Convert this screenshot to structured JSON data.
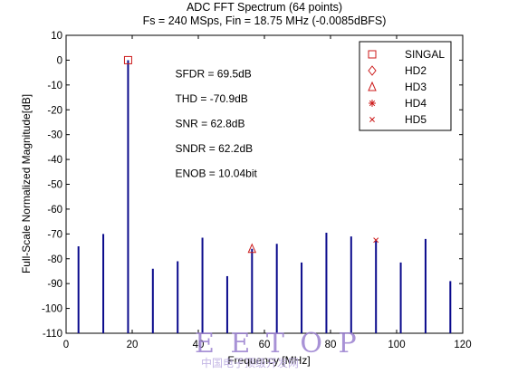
{
  "chart_data": {
    "type": "bar",
    "title_lines": [
      "ADC FFT Spectrum (64 points)",
      "Fs = 240 MSps, Fin = 18.75 MHz (-0.0085dBFS)"
    ],
    "xlabel": "Frequency [MHz]",
    "ylabel": "Full-Scale Normalized Magnitude[dB]",
    "xlim": [
      0,
      120
    ],
    "ylim": [
      -110,
      10
    ],
    "xticks": [
      0,
      20,
      40,
      60,
      80,
      100,
      120
    ],
    "yticks": [
      10,
      0,
      -10,
      -20,
      -30,
      -40,
      -50,
      -60,
      -70,
      -80,
      -90,
      -100,
      -110
    ],
    "grid": false,
    "baseline": -110,
    "bars": [
      {
        "x": 3.75,
        "y": -75
      },
      {
        "x": 11.25,
        "y": -70
      },
      {
        "x": 18.75,
        "y": -0.0085
      },
      {
        "x": 26.25,
        "y": -84
      },
      {
        "x": 33.75,
        "y": -81
      },
      {
        "x": 41.25,
        "y": -71.5
      },
      {
        "x": 48.75,
        "y": -87
      },
      {
        "x": 56.25,
        "y": -76
      },
      {
        "x": 63.75,
        "y": -74
      },
      {
        "x": 71.25,
        "y": -81.5
      },
      {
        "x": 78.75,
        "y": -69.5
      },
      {
        "x": 86.25,
        "y": -71
      },
      {
        "x": 93.75,
        "y": -72.5
      },
      {
        "x": 101.25,
        "y": -81.5
      },
      {
        "x": 108.75,
        "y": -72
      },
      {
        "x": 116.25,
        "y": -89
      }
    ],
    "markers": [
      {
        "name": "SINGAL",
        "symbol": "square",
        "x": 18.75,
        "y": 0
      },
      {
        "name": "HD3",
        "symbol": "triangle",
        "x": 56.25,
        "y": -76
      },
      {
        "name": "HD5",
        "symbol": "x",
        "x": 93.75,
        "y": -72.5
      }
    ],
    "annotations": [
      {
        "text": "SFDR = 69.5dB",
        "x": 33,
        "y": -7
      },
      {
        "text": "THD = -70.9dB",
        "x": 33,
        "y": -17
      },
      {
        "text": "SNR   = 62.8dB",
        "x": 33,
        "y": -27
      },
      {
        "text": "SNDR = 62.2dB",
        "x": 33,
        "y": -37
      },
      {
        "text": "ENOB = 10.04bit",
        "x": 33,
        "y": -47
      }
    ],
    "legend": {
      "placement": "top-right",
      "entries": [
        {
          "label": "SINGAL",
          "symbol": "square"
        },
        {
          "label": "HD2",
          "symbol": "diamond"
        },
        {
          "label": "HD3",
          "symbol": "triangle"
        },
        {
          "label": "HD4",
          "symbol": "asterisk"
        },
        {
          "label": "HD5",
          "symbol": "x"
        }
      ]
    },
    "colors": {
      "bars": "#0a0a8c",
      "markers": "#cc1a1a",
      "axis": "#000000"
    }
  },
  "watermark": {
    "brand": "E E T O P",
    "subtitle": "中国电子顶级开发网"
  }
}
